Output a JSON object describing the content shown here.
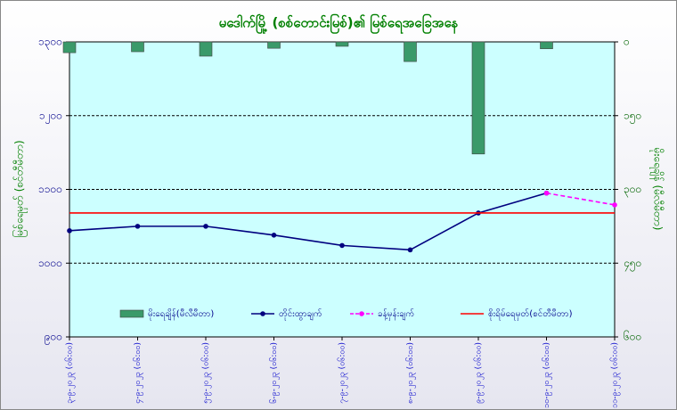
{
  "chart_data": {
    "type": "combo",
    "title": "မဒေါက်မြို့ (စစ်တောင်းမြစ်)၏ မြစ်ရေအခြေအနေ",
    "ylabel": "မြစ်ရေမှတ် (စင်တီမီတာ)",
    "y2label": "မိုးရေချိန် (မီလီမီတာ)",
    "categories": [
      "၃-၉-၂၀၂၃ (၀၆:၀၀)",
      "၄-၉-၂၀၂၃ (၀၆:၀၀)",
      "၅-၉-၂၀၂၃ (၀၆:၀၀)",
      "၆-၉-၂၀၂၃ (၀၆:၀၀)",
      "၇-၉-၂၀၂၃ (၀၆:၀၀)",
      "၈-၉-၂၀၂၃ (၀၆:၀၀)",
      "၉-၉-၂၀၂၃ (၀၆:၀၀)",
      "၁၀-၉-၂၀၂၃ (၀၆:၀၀)",
      "၁၁-၉-၂၀၂၃ (၀၆:၀၀)"
    ],
    "ylim": [
      900,
      1300
    ],
    "yticks": [
      {
        "value": 900,
        "label": "၉၀၀"
      },
      {
        "value": 1000,
        "label": "၁၀၀၀"
      },
      {
        "value": 1100,
        "label": "၁၁၀၀"
      },
      {
        "value": 1200,
        "label": "၁၂၀၀"
      },
      {
        "value": 1300,
        "label": "၁၃၀၀"
      }
    ],
    "y2lim": [
      0,
      600
    ],
    "y2_inverted": true,
    "y2ticks": [
      {
        "value": 0,
        "label": "၀"
      },
      {
        "value": 150,
        "label": "၁၅၀"
      },
      {
        "value": 300,
        "label": "၃၀၀"
      },
      {
        "value": 450,
        "label": "၄၅၀"
      },
      {
        "value": 600,
        "label": "၆၀၀"
      }
    ],
    "grid": true,
    "series": [
      {
        "name": "မိုးရေချိန်(မီလီမီတာ)",
        "color": "#3a9a6a",
        "mark": "bar",
        "axis": "y2",
        "values": [
          22,
          20,
          29,
          13,
          9,
          40,
          228,
          14,
          null
        ]
      },
      {
        "name": "တိုင်းထွာချက်",
        "color": "#00007f",
        "mark": "line",
        "values": [
          1044,
          1050,
          1050,
          1038,
          1024,
          1018,
          1068,
          1095,
          null
        ]
      },
      {
        "name": "ခန့်မှန်းချက်",
        "color": "#ff00ff",
        "mark": "dashed",
        "values": [
          null,
          null,
          null,
          null,
          null,
          null,
          null,
          1095,
          1079
        ]
      },
      {
        "name": "စိုးရိမ်ရေမှတ်(စင်တီမီတာ)",
        "color": "#ff0000",
        "mark": "level",
        "values": [
          1068,
          1068,
          1068,
          1068,
          1068,
          1068,
          1068,
          1068,
          1068
        ]
      }
    ]
  }
}
